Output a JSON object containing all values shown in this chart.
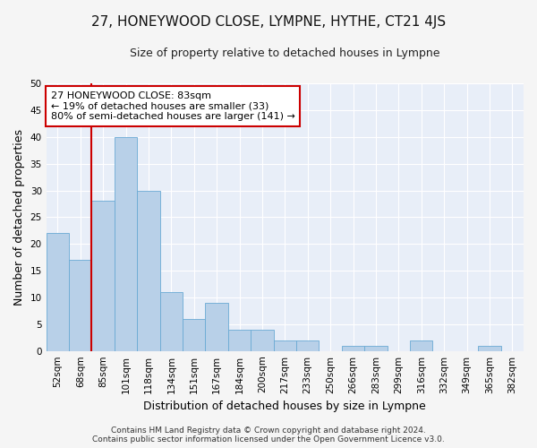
{
  "title": "27, HONEYWOOD CLOSE, LYMPNE, HYTHE, CT21 4JS",
  "subtitle": "Size of property relative to detached houses in Lympne",
  "xlabel": "Distribution of detached houses by size in Lympne",
  "ylabel": "Number of detached properties",
  "categories": [
    "52sqm",
    "68sqm",
    "85sqm",
    "101sqm",
    "118sqm",
    "134sqm",
    "151sqm",
    "167sqm",
    "184sqm",
    "200sqm",
    "217sqm",
    "233sqm",
    "250sqm",
    "266sqm",
    "283sqm",
    "299sqm",
    "316sqm",
    "332sqm",
    "349sqm",
    "365sqm",
    "382sqm"
  ],
  "values": [
    22,
    17,
    28,
    40,
    30,
    11,
    6,
    9,
    4,
    4,
    2,
    2,
    0,
    1,
    1,
    0,
    2,
    0,
    0,
    1,
    0
  ],
  "bar_color": "#b8d0e8",
  "bar_edge_color": "#6aaad4",
  "vline_pos": 1.5,
  "vline_color": "#cc0000",
  "annotation_line1": "27 HONEYWOOD CLOSE: 83sqm",
  "annotation_line2": "← 19% of detached houses are smaller (33)",
  "annotation_line3": "80% of semi-detached houses are larger (141) →",
  "annotation_box_color": "#ffffff",
  "annotation_box_edge_color": "#cc0000",
  "ylim": [
    0,
    50
  ],
  "yticks": [
    0,
    5,
    10,
    15,
    20,
    25,
    30,
    35,
    40,
    45,
    50
  ],
  "footer_line1": "Contains HM Land Registry data © Crown copyright and database right 2024.",
  "footer_line2": "Contains public sector information licensed under the Open Government Licence v3.0.",
  "fig_bg_color": "#f5f5f5",
  "plot_bg_color": "#e8eef8",
  "grid_color": "#ffffff",
  "title_fontsize": 11,
  "subtitle_fontsize": 9,
  "axis_label_fontsize": 9,
  "tick_fontsize": 7.5,
  "annotation_fontsize": 8,
  "footer_fontsize": 6.5
}
